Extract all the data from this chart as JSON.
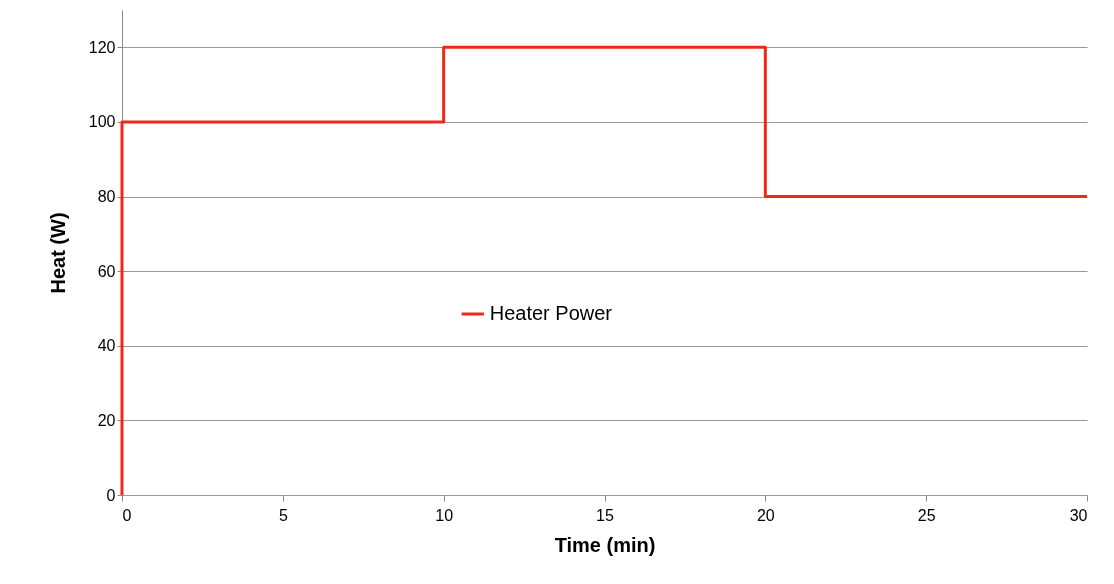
{
  "chart_data": {
    "type": "line",
    "xlabel": "Time (min)",
    "ylabel": "Heat (W)",
    "series": [
      {
        "name": "Heater Power",
        "color": "#f0281a",
        "x": [
          0,
          0,
          10,
          10,
          20,
          20,
          30
        ],
        "values": [
          0,
          100,
          100,
          120,
          120,
          80,
          80
        ]
      }
    ],
    "xlim": [
      0,
      30
    ],
    "xticks": [
      0,
      5,
      10,
      15,
      20,
      25,
      30
    ],
    "ylim": [
      0,
      130
    ],
    "yticks": [
      0,
      20,
      40,
      60,
      80,
      100,
      120
    ],
    "grid": "y",
    "legend": "center",
    "marker": "none",
    "line_style": "solid"
  }
}
